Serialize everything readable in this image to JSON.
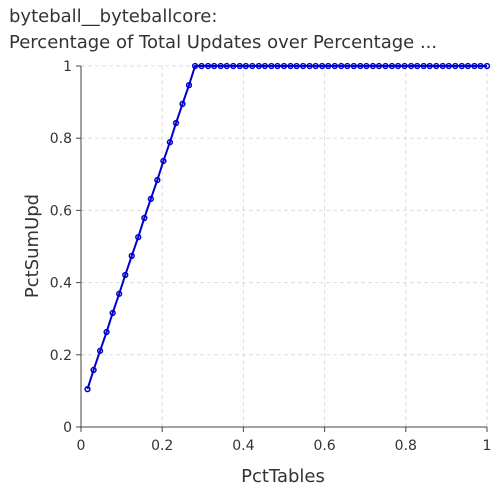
{
  "chart_data": {
    "type": "line",
    "title": "byteball__byteballcore:",
    "subtitle": "Percentage of Total Updates over Percentage ...",
    "xlabel": "PctTables",
    "ylabel": "PctSumUpd",
    "xlim": [
      0,
      1
    ],
    "ylim": [
      0,
      1
    ],
    "xticks": [
      "0",
      "0.2",
      "0.4",
      "0.6",
      "0.8",
      "1"
    ],
    "yticks": [
      "0",
      "0.2",
      "0.4",
      "0.6",
      "0.8",
      "1"
    ],
    "grid": true,
    "legend": "none",
    "series": [
      {
        "color": "#0000cc",
        "x": [
          0.016,
          0.031,
          0.047,
          0.063,
          0.078,
          0.094,
          0.109,
          0.125,
          0.141,
          0.156,
          0.172,
          0.188,
          0.203,
          0.219,
          0.234,
          0.25,
          0.266,
          0.281,
          0.297,
          0.313,
          0.328,
          0.344,
          0.359,
          0.375,
          0.391,
          0.406,
          0.422,
          0.438,
          0.453,
          0.469,
          0.484,
          0.5,
          0.516,
          0.531,
          0.547,
          0.563,
          0.578,
          0.594,
          0.609,
          0.625,
          0.641,
          0.656,
          0.672,
          0.688,
          0.703,
          0.719,
          0.734,
          0.75,
          0.766,
          0.781,
          0.797,
          0.813,
          0.828,
          0.844,
          0.859,
          0.875,
          0.891,
          0.906,
          0.922,
          0.938,
          0.953,
          0.969,
          0.984,
          1.0
        ],
        "y": [
          0.105,
          0.158,
          0.211,
          0.263,
          0.316,
          0.369,
          0.421,
          0.474,
          0.526,
          0.579,
          0.632,
          0.684,
          0.737,
          0.789,
          0.842,
          0.895,
          0.947,
          1,
          1,
          1,
          1,
          1,
          1,
          1,
          1,
          1,
          1,
          1,
          1,
          1,
          1,
          1,
          1,
          1,
          1,
          1,
          1,
          1,
          1,
          1,
          1,
          1,
          1,
          1,
          1,
          1,
          1,
          1,
          1,
          1,
          1,
          1,
          1,
          1,
          1,
          1,
          1,
          1,
          1,
          1,
          1,
          1,
          1,
          1
        ]
      }
    ]
  }
}
